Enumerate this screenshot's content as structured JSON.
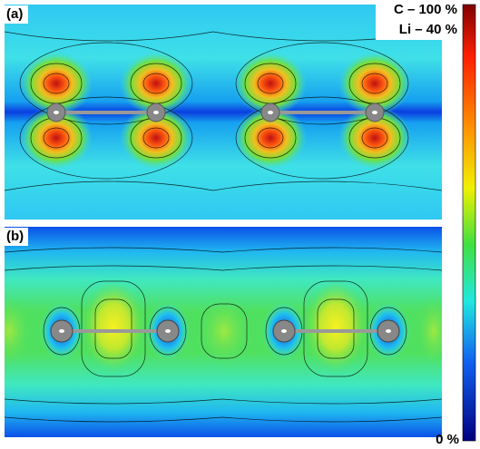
{
  "panels": [
    {
      "label": "(a)"
    },
    {
      "label": "(b)"
    }
  ],
  "colorbar": {
    "top_labels": [
      "C – 100 %",
      "Li – 40 %"
    ],
    "bottom_label": "0 %"
  }
}
